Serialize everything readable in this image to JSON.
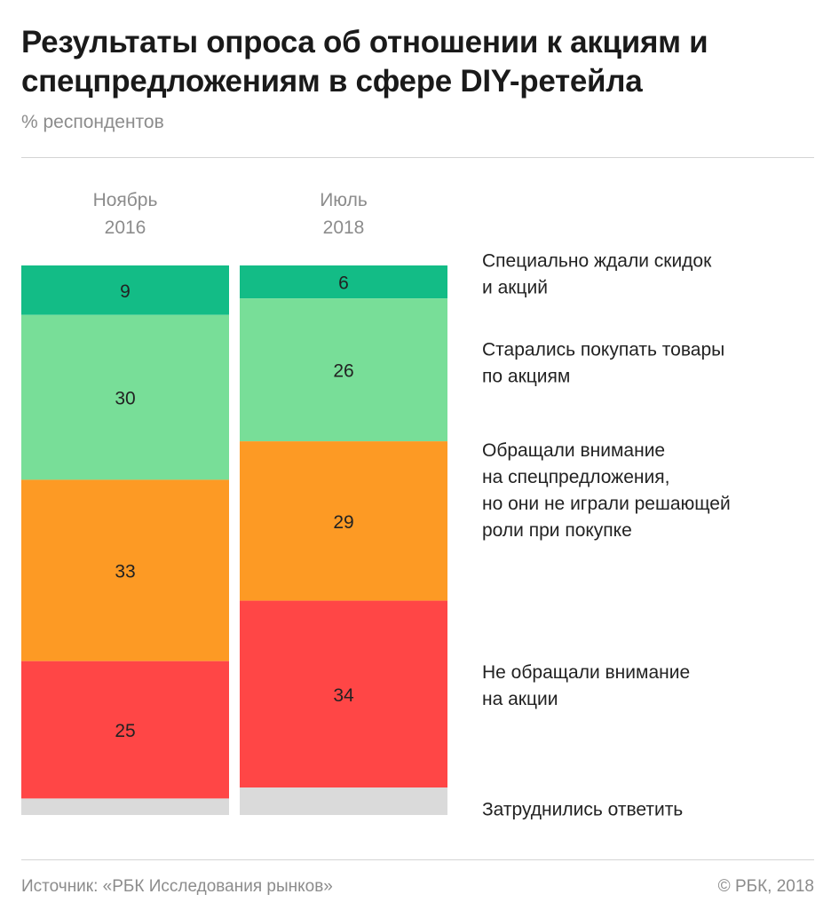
{
  "title": "Результаты опроса об отношении к акциям и спецпредложениям в сфере DIY-ретейла",
  "subtitle": "% респондентов",
  "footer": {
    "source": "Источник: «РБК Исследования рынков»",
    "copyright": "© РБК, 2018"
  },
  "chart_data": {
    "type": "bar",
    "stacked": true,
    "normalized_to": 100,
    "title": "Результаты опроса об отношении к акциям и спецпредложениям в сфере DIY-ретейла",
    "ylabel": "% респондентов",
    "categories": [
      [
        "Ноябрь",
        "2016"
      ],
      [
        "Июль",
        "2018"
      ]
    ],
    "series": [
      {
        "name": [
          "Специально ждали скидок",
          "и акций"
        ],
        "color": "#13bc86",
        "values": [
          9,
          6
        ],
        "show_labels": true
      },
      {
        "name": [
          "Старались покупать товары",
          "по акциям"
        ],
        "color": "#78de98",
        "values": [
          30,
          26
        ],
        "show_labels": true
      },
      {
        "name": [
          "Обращали внимание",
          "на спецпредложения,",
          "но они не играли решающей",
          "роли при покупке"
        ],
        "color": "#fd9a24",
        "values": [
          33,
          29
        ],
        "show_labels": true
      },
      {
        "name": [
          "Не обращали внимание",
          "на акции"
        ],
        "color": "#ff4646",
        "values": [
          25,
          34
        ],
        "show_labels": true
      },
      {
        "name": [
          "Затруднились ответить"
        ],
        "color": "#dadada",
        "values": [
          3,
          5
        ],
        "show_labels": false
      }
    ],
    "legend": "right",
    "grid": false
  }
}
